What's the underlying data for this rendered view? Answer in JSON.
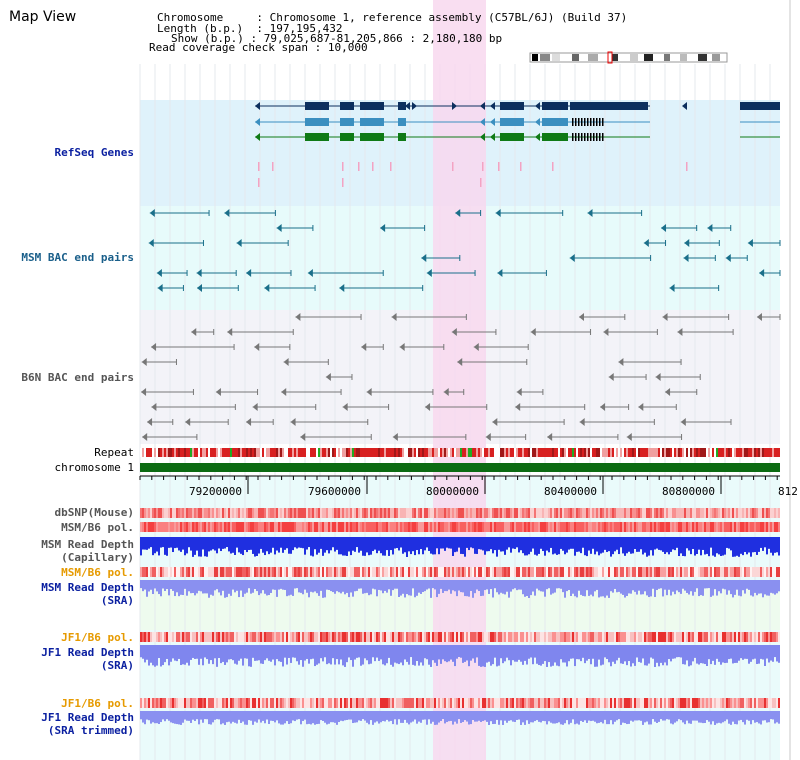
{
  "header": {
    "title": "Map View",
    "info": {
      "chromosome_key": "Chromosome",
      "chromosome_val": "Chromosome 1, reference assembly (C57BL/6J) (Build 37)",
      "length_key": "Length (b.p.)",
      "length_val": "197,195,432",
      "show_key": "Show (b.p.)",
      "show_val": "79,025,687-81,205,866 : 2,180,180 bp",
      "span_key": "Read coverage check span",
      "span_val": "10,000"
    }
  },
  "tracks": {
    "refseq": "RefSeq Genes",
    "msm_bac": "MSM BAC end pairs",
    "b6n_bac": "B6N BAC end pairs",
    "repeat": "Repeat",
    "chrom": "chromosome 1",
    "dbsnp": "dbSNP(Mouse)",
    "msm_pol": "MSM/B6 pol.",
    "msm_depth_cap_1": "MSM Read Depth",
    "msm_depth_cap_2": "(Capillary)",
    "msm_pol_2": "MSM/B6 pol.",
    "msm_depth_sra_1": "MSM Read Depth",
    "msm_depth_sra_2": "(SRA)",
    "jf1_pol": "JF1/B6 pol.",
    "jf1_depth_sra_1": "JF1 Read Depth",
    "jf1_depth_sra_2": "(SRA)",
    "jf1_pol_2": "JF1/B6 pol.",
    "jf1_depth_trim_1": "JF1 Read Depth",
    "jf1_depth_trim_2": "(SRA trimmed)"
  },
  "ruler": {
    "ticks": [
      "79200000",
      "79600000",
      "80000000",
      "80400000",
      "80800000",
      "812"
    ]
  },
  "colors": {
    "refseq_bg": "#dff2fb",
    "msm_bg": "#e7fbfb",
    "b6n_bg": "#f3f3f8",
    "highlight": "#f8d8ee",
    "gene_dark": "#0d2f5e",
    "gene_mid": "#3b8fc0",
    "gene_green": "#0f7a16",
    "msm_pair": "#1a6f8a",
    "b6n_pair": "#777777",
    "chrom_bar": "#0c6b12",
    "label_blue": "#0a1fa0",
    "label_orange": "#e69a00",
    "label_gray": "#555555"
  }
}
